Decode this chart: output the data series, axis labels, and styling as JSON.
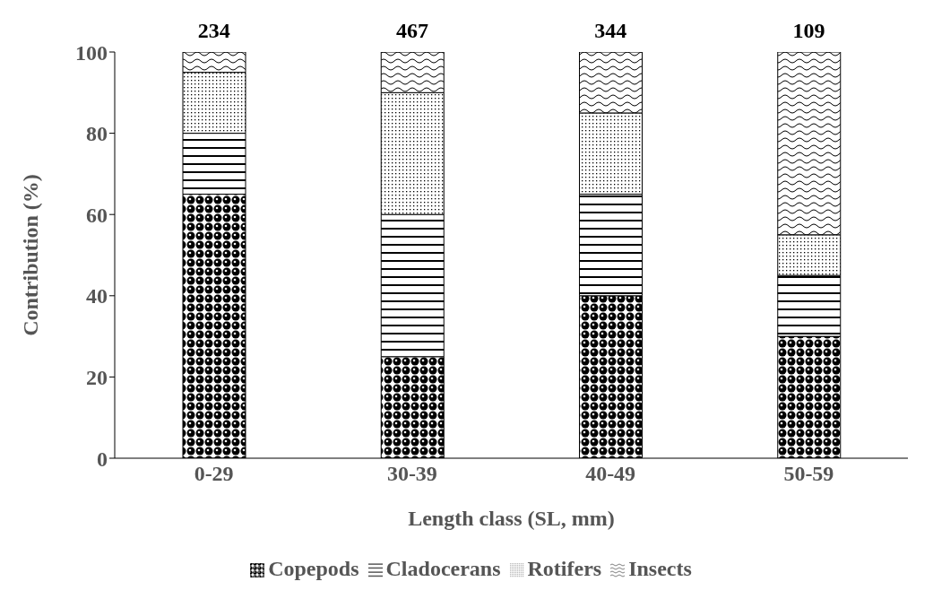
{
  "chart_data": {
    "type": "bar",
    "stacked": true,
    "xlabel": "Length class (SL, mm)",
    "ylabel": "Contribution (%)",
    "categories": [
      "0-29",
      "30-39",
      "40-49",
      "50-59"
    ],
    "series": [
      {
        "name": "Copepods",
        "color": "#000000",
        "values": [
          65,
          25,
          40,
          30
        ]
      },
      {
        "name": "Cladocerans",
        "color": "#000000",
        "values": [
          15,
          35,
          25,
          15
        ]
      },
      {
        "name": "Rotifers",
        "color": "#000000",
        "values": [
          15,
          30,
          20,
          10
        ]
      },
      {
        "name": "Insects",
        "color": "#000000",
        "values": [
          5,
          10,
          15,
          45
        ]
      }
    ],
    "annotations": [
      {
        "text": "234",
        "x": "0-29",
        "y": 100
      },
      {
        "text": "467",
        "x": "30-39",
        "y": 100
      },
      {
        "text": "344",
        "x": "40-49",
        "y": 100
      },
      {
        "text": "109",
        "x": "50-59",
        "y": 100
      }
    ],
    "ylim": [
      0,
      100
    ],
    "yticks": [
      0,
      20,
      40,
      60,
      80,
      100
    ],
    "grid": false,
    "legend": "bottom"
  }
}
